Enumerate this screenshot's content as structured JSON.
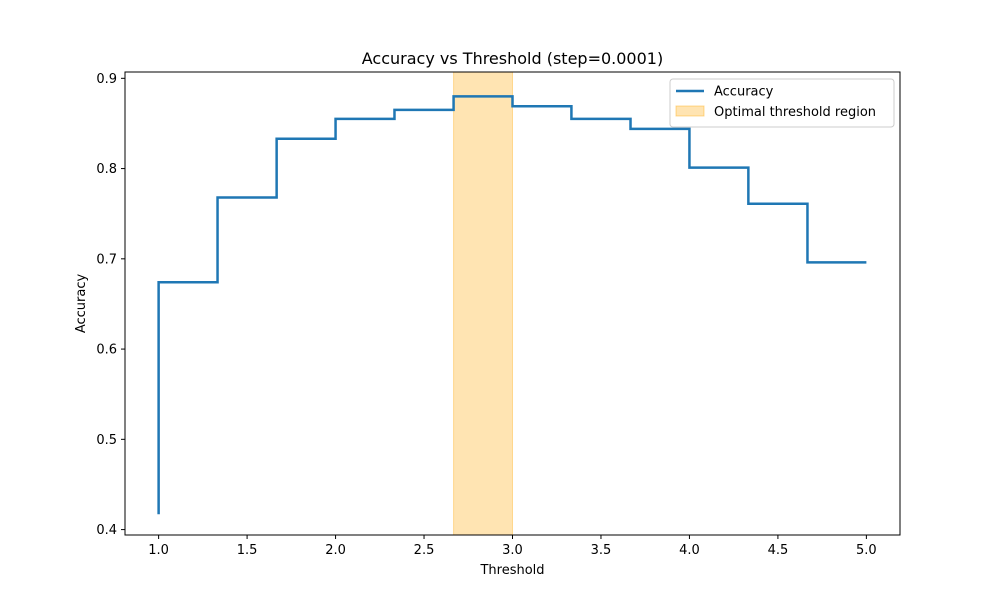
{
  "chart_data": {
    "type": "line",
    "title": "Accuracy vs Threshold (step=0.0001)",
    "xlabel": "Threshold",
    "ylabel": "Accuracy",
    "xlim": [
      0.81,
      5.19
    ],
    "ylim": [
      0.394,
      0.907
    ],
    "xticks": [
      1.0,
      1.5,
      2.0,
      2.5,
      3.0,
      3.5,
      4.0,
      4.5,
      5.0
    ],
    "xtick_labels": [
      "1.0",
      "1.5",
      "2.0",
      "2.5",
      "3.0",
      "3.5",
      "4.0",
      "4.5",
      "5.0"
    ],
    "yticks": [
      0.4,
      0.5,
      0.6,
      0.7,
      0.8,
      0.9
    ],
    "ytick_labels": [
      "0.4",
      "0.5",
      "0.6",
      "0.7",
      "0.8",
      "0.9"
    ],
    "grid": false,
    "legend_position": "top-right",
    "series": [
      {
        "name": "Accuracy",
        "color": "#1f77b4",
        "style": "step",
        "x": [
          1.0,
          1.0,
          1.333,
          1.667,
          2.0,
          2.333,
          2.667,
          3.0,
          3.333,
          3.667,
          4.0,
          4.333,
          4.667,
          5.0
        ],
        "y": [
          0.417,
          0.674,
          0.768,
          0.833,
          0.855,
          0.865,
          0.88,
          0.869,
          0.855,
          0.844,
          0.801,
          0.761,
          0.696,
          0.696
        ]
      }
    ],
    "regions": [
      {
        "name": "Optimal threshold region",
        "x_start": 2.667,
        "x_end": 3.0,
        "color": "#ffa500",
        "opacity": 0.3
      }
    ]
  }
}
